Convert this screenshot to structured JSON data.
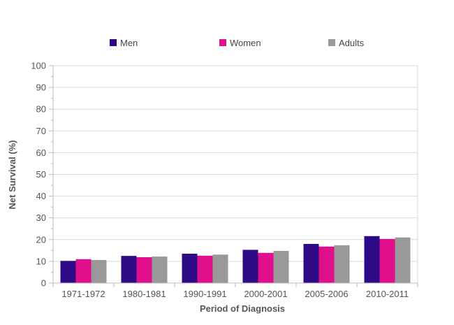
{
  "chart_data": {
    "type": "bar",
    "title": "",
    "xlabel": "Period of Diagnosis",
    "ylabel": "Net Survival (%)",
    "ylim": [
      0,
      100
    ],
    "yticks": [
      0,
      10,
      20,
      30,
      40,
      50,
      60,
      70,
      80,
      90,
      100
    ],
    "categories": [
      "1971-1972",
      "1980-1981",
      "1990-1991",
      "2000-2001",
      "2005-2006",
      "2010-2011"
    ],
    "series": [
      {
        "name": "Men",
        "color": "#2e0a87",
        "values": [
          10.2,
          12.5,
          13.5,
          15.3,
          18.0,
          21.6
        ]
      },
      {
        "name": "Women",
        "color": "#e0108c",
        "values": [
          11.0,
          11.9,
          12.6,
          13.9,
          16.8,
          20.3
        ]
      },
      {
        "name": "Adults",
        "color": "#999999",
        "values": [
          10.6,
          12.2,
          13.1,
          14.8,
          17.4,
          21.0
        ]
      }
    ],
    "grid": true,
    "legend_position": "top"
  }
}
